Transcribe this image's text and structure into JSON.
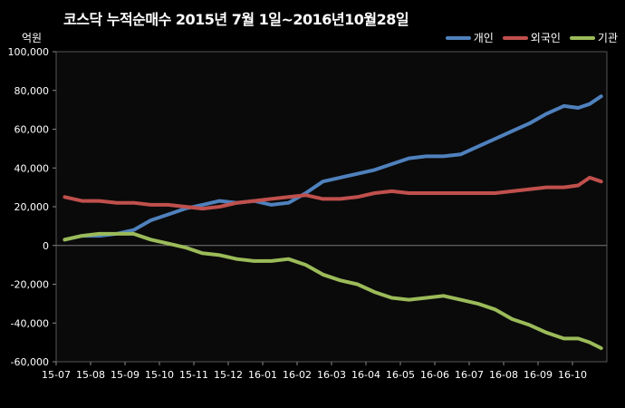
{
  "chart_data": {
    "type": "line",
    "title": "코스닥 누적순매수 2015년 7월 1일~2016년10월28일",
    "unit_label": "억원",
    "ylim": [
      -60000,
      100000
    ],
    "yticks": [
      -60000,
      -40000,
      -20000,
      0,
      20000,
      40000,
      60000,
      80000,
      100000
    ],
    "ytick_labels": [
      "-60,000",
      "-40,000",
      "-20,000",
      "0",
      "20,000",
      "40,000",
      "60,000",
      "80,000",
      "100,000"
    ],
    "x_labels": [
      "15-07",
      "15-08",
      "15-09",
      "15-10",
      "15-11",
      "15-12",
      "16-01",
      "16-02",
      "16-03",
      "16-04",
      "16-05",
      "16-06",
      "16-07",
      "16-08",
      "16-09",
      "16-10"
    ],
    "x": [
      "15-07",
      "15-07",
      "15-08",
      "15-08",
      "15-09",
      "15-09",
      "15-10",
      "15-10",
      "15-11",
      "15-11",
      "15-12",
      "15-12",
      "16-01",
      "16-01",
      "16-02",
      "16-02",
      "16-03",
      "16-03",
      "16-04",
      "16-04",
      "16-05",
      "16-05",
      "16-06",
      "16-06",
      "16-07",
      "16-07",
      "16-08",
      "16-08",
      "16-09",
      "16-09",
      "16-10",
      "16-10",
      "16-10"
    ],
    "grid": false,
    "legend": "top-right",
    "series": [
      {
        "name": "개인",
        "color": "#4f81bd",
        "values": [
          3000,
          5000,
          5000,
          6000,
          8000,
          13000,
          16000,
          19000,
          21000,
          23000,
          22000,
          23000,
          21000,
          22000,
          27000,
          33000,
          35000,
          37000,
          39000,
          42000,
          45000,
          46000,
          46000,
          47000,
          51000,
          55000,
          59000,
          63000,
          68000,
          72000,
          71000,
          73000,
          77000
        ]
      },
      {
        "name": "외국인",
        "color": "#c0504d",
        "values": [
          25000,
          23000,
          23000,
          22000,
          22000,
          21000,
          21000,
          20000,
          19000,
          20000,
          22000,
          23000,
          24000,
          25000,
          26000,
          24000,
          24000,
          25000,
          27000,
          28000,
          27000,
          27000,
          27000,
          27000,
          27000,
          27000,
          28000,
          29000,
          30000,
          30000,
          31000,
          35000,
          33000
        ]
      },
      {
        "name": "기관",
        "color": "#9bbb59",
        "values": [
          3000,
          5000,
          6000,
          6000,
          6000,
          3000,
          1000,
          -1000,
          -4000,
          -5000,
          -7000,
          -8000,
          -8000,
          -7000,
          -10000,
          -15000,
          -18000,
          -20000,
          -24000,
          -27000,
          -28000,
          -27000,
          -26000,
          -28000,
          -30000,
          -33000,
          -38000,
          -41000,
          -45000,
          -48000,
          -48000,
          -50000,
          -53000
        ]
      }
    ]
  }
}
